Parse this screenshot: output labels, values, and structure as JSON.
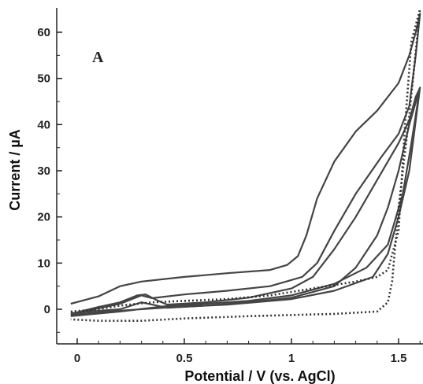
{
  "chart_data": {
    "type": "line",
    "panel_label": "A",
    "xlabel": "Potential / V (vs. AgCl)",
    "ylabel": "Current / µA",
    "xlim": [
      -0.06,
      1.62
    ],
    "ylim": [
      -7,
      65
    ],
    "xticks": [
      0,
      0.5,
      1,
      1.5
    ],
    "xtick_labels": [
      "0",
      "0.5",
      "1",
      "1.5"
    ],
    "yticks": [
      0,
      10,
      20,
      30,
      40,
      50,
      60
    ],
    "ytick_labels": [
      "0",
      "10",
      "20",
      "30",
      "40",
      "50",
      "60"
    ],
    "grid": false,
    "legend": "none",
    "series": [
      {
        "style": "solid",
        "color": "#444444",
        "points": [
          [
            -0.03,
            1.2
          ],
          [
            0.1,
            2.8
          ],
          [
            0.2,
            5.0
          ],
          [
            0.3,
            6.0
          ],
          [
            0.5,
            7.0
          ],
          [
            0.7,
            7.8
          ],
          [
            0.9,
            8.5
          ],
          [
            0.98,
            9.6
          ],
          [
            1.03,
            11.5
          ],
          [
            1.07,
            16.0
          ],
          [
            1.12,
            24.0
          ],
          [
            1.2,
            32.0
          ],
          [
            1.3,
            38.5
          ],
          [
            1.4,
            43.0
          ],
          [
            1.5,
            49.0
          ],
          [
            1.55,
            55.0
          ],
          [
            1.58,
            60.0
          ],
          [
            1.6,
            64.0
          ],
          [
            1.58,
            55.0
          ],
          [
            1.55,
            44.0
          ],
          [
            1.5,
            38.0
          ],
          [
            1.42,
            33.0
          ],
          [
            1.3,
            25.0
          ],
          [
            1.2,
            17.0
          ],
          [
            1.12,
            10.0
          ],
          [
            1.05,
            7.0
          ],
          [
            0.9,
            5.0
          ],
          [
            0.7,
            4.0
          ],
          [
            0.5,
            3.2
          ],
          [
            0.35,
            2.4
          ],
          [
            0.3,
            3.0
          ],
          [
            0.2,
            1.2
          ],
          [
            0.1,
            0.2
          ],
          [
            -0.03,
            -1.2
          ]
        ]
      },
      {
        "style": "solid",
        "color": "#444444",
        "points": [
          [
            -0.03,
            -1.0
          ],
          [
            0.1,
            0.5
          ],
          [
            0.2,
            1.5
          ],
          [
            0.28,
            3.0
          ],
          [
            0.32,
            3.2
          ],
          [
            0.37,
            2.0
          ],
          [
            0.42,
            1.0
          ],
          [
            0.6,
            1.5
          ],
          [
            0.8,
            2.5
          ],
          [
            1.0,
            4.5
          ],
          [
            1.1,
            7.0
          ],
          [
            1.2,
            13.0
          ],
          [
            1.3,
            20.0
          ],
          [
            1.4,
            28.0
          ],
          [
            1.5,
            36.0
          ],
          [
            1.55,
            41.0
          ],
          [
            1.58,
            46.0
          ],
          [
            1.6,
            48.0
          ],
          [
            1.55,
            40.0
          ],
          [
            1.5,
            30.0
          ],
          [
            1.45,
            22.0
          ],
          [
            1.4,
            16.0
          ],
          [
            1.3,
            9.0
          ],
          [
            1.2,
            5.0
          ],
          [
            1.0,
            2.5
          ],
          [
            0.8,
            1.5
          ],
          [
            0.6,
            0.8
          ],
          [
            0.42,
            0.3
          ],
          [
            0.3,
            1.5
          ],
          [
            0.2,
            0.0
          ],
          [
            -0.03,
            -0.8
          ]
        ]
      },
      {
        "style": "solid",
        "color": "#444444",
        "points": [
          [
            -0.03,
            -1.5
          ],
          [
            0.2,
            -0.5
          ],
          [
            0.4,
            0.6
          ],
          [
            0.6,
            1.2
          ],
          [
            0.8,
            1.8
          ],
          [
            1.0,
            3.0
          ],
          [
            1.2,
            5.5
          ],
          [
            1.35,
            9.0
          ],
          [
            1.45,
            14.0
          ],
          [
            1.52,
            25.0
          ],
          [
            1.56,
            36.0
          ],
          [
            1.6,
            48.0
          ],
          [
            1.55,
            30.0
          ],
          [
            1.5,
            20.0
          ],
          [
            1.45,
            12.0
          ],
          [
            1.38,
            7.0
          ],
          [
            1.2,
            4.0
          ],
          [
            1.0,
            2.2
          ],
          [
            0.7,
            1.0
          ],
          [
            0.4,
            0.3
          ],
          [
            0.2,
            -0.3
          ],
          [
            -0.03,
            -1.2
          ]
        ]
      },
      {
        "style": "dotted",
        "color": "#333333",
        "points": [
          [
            -0.03,
            -0.5
          ],
          [
            0.1,
            0.0
          ],
          [
            0.2,
            0.8
          ],
          [
            0.35,
            1.5
          ],
          [
            0.5,
            1.8
          ],
          [
            0.7,
            2.2
          ],
          [
            0.9,
            3.0
          ],
          [
            1.1,
            4.5
          ],
          [
            1.3,
            6.0
          ],
          [
            1.4,
            7.0
          ],
          [
            1.45,
            8.5
          ],
          [
            1.5,
            17.0
          ],
          [
            1.53,
            40.0
          ],
          [
            1.56,
            58.0
          ],
          [
            1.6,
            65.0
          ],
          [
            1.55,
            42.0
          ],
          [
            1.5,
            22.0
          ],
          [
            1.47,
            6.0
          ],
          [
            1.45,
            1.5
          ],
          [
            1.4,
            -0.5
          ],
          [
            1.2,
            -1.0
          ],
          [
            0.8,
            -1.5
          ],
          [
            0.5,
            -2.0
          ],
          [
            0.3,
            -2.5
          ],
          [
            0.1,
            -2.5
          ],
          [
            -0.03,
            -2.2
          ]
        ]
      }
    ]
  }
}
